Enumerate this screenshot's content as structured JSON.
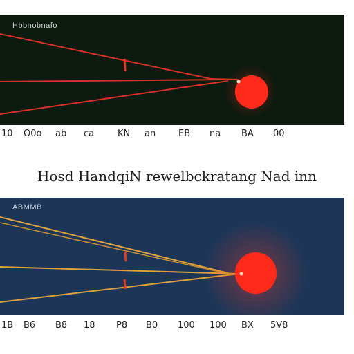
{
  "title": "Hosd HandqiN rewelbckratang Nad inn",
  "colors": {
    "panel_top_bg": "#0c1a0f",
    "panel_bottom_bg": "#1d3658",
    "beam_top": "#d8322a",
    "beam_bottom": "#e0a23c",
    "source": "#ff2a1a",
    "marker": "#e23a22"
  },
  "top_panel": {
    "label": "Hbbnobnafo",
    "scale_labels": [
      "10",
      "O0o",
      "ab",
      "ca",
      "KN",
      "an",
      "EB",
      "na",
      "BA",
      "00"
    ]
  },
  "bottom_panel": {
    "label": "ABMMB",
    "scale_labels": [
      "1B",
      "B6",
      "B8",
      "18",
      "P8",
      "B0",
      "100",
      "100",
      "BX",
      "5V8"
    ]
  }
}
